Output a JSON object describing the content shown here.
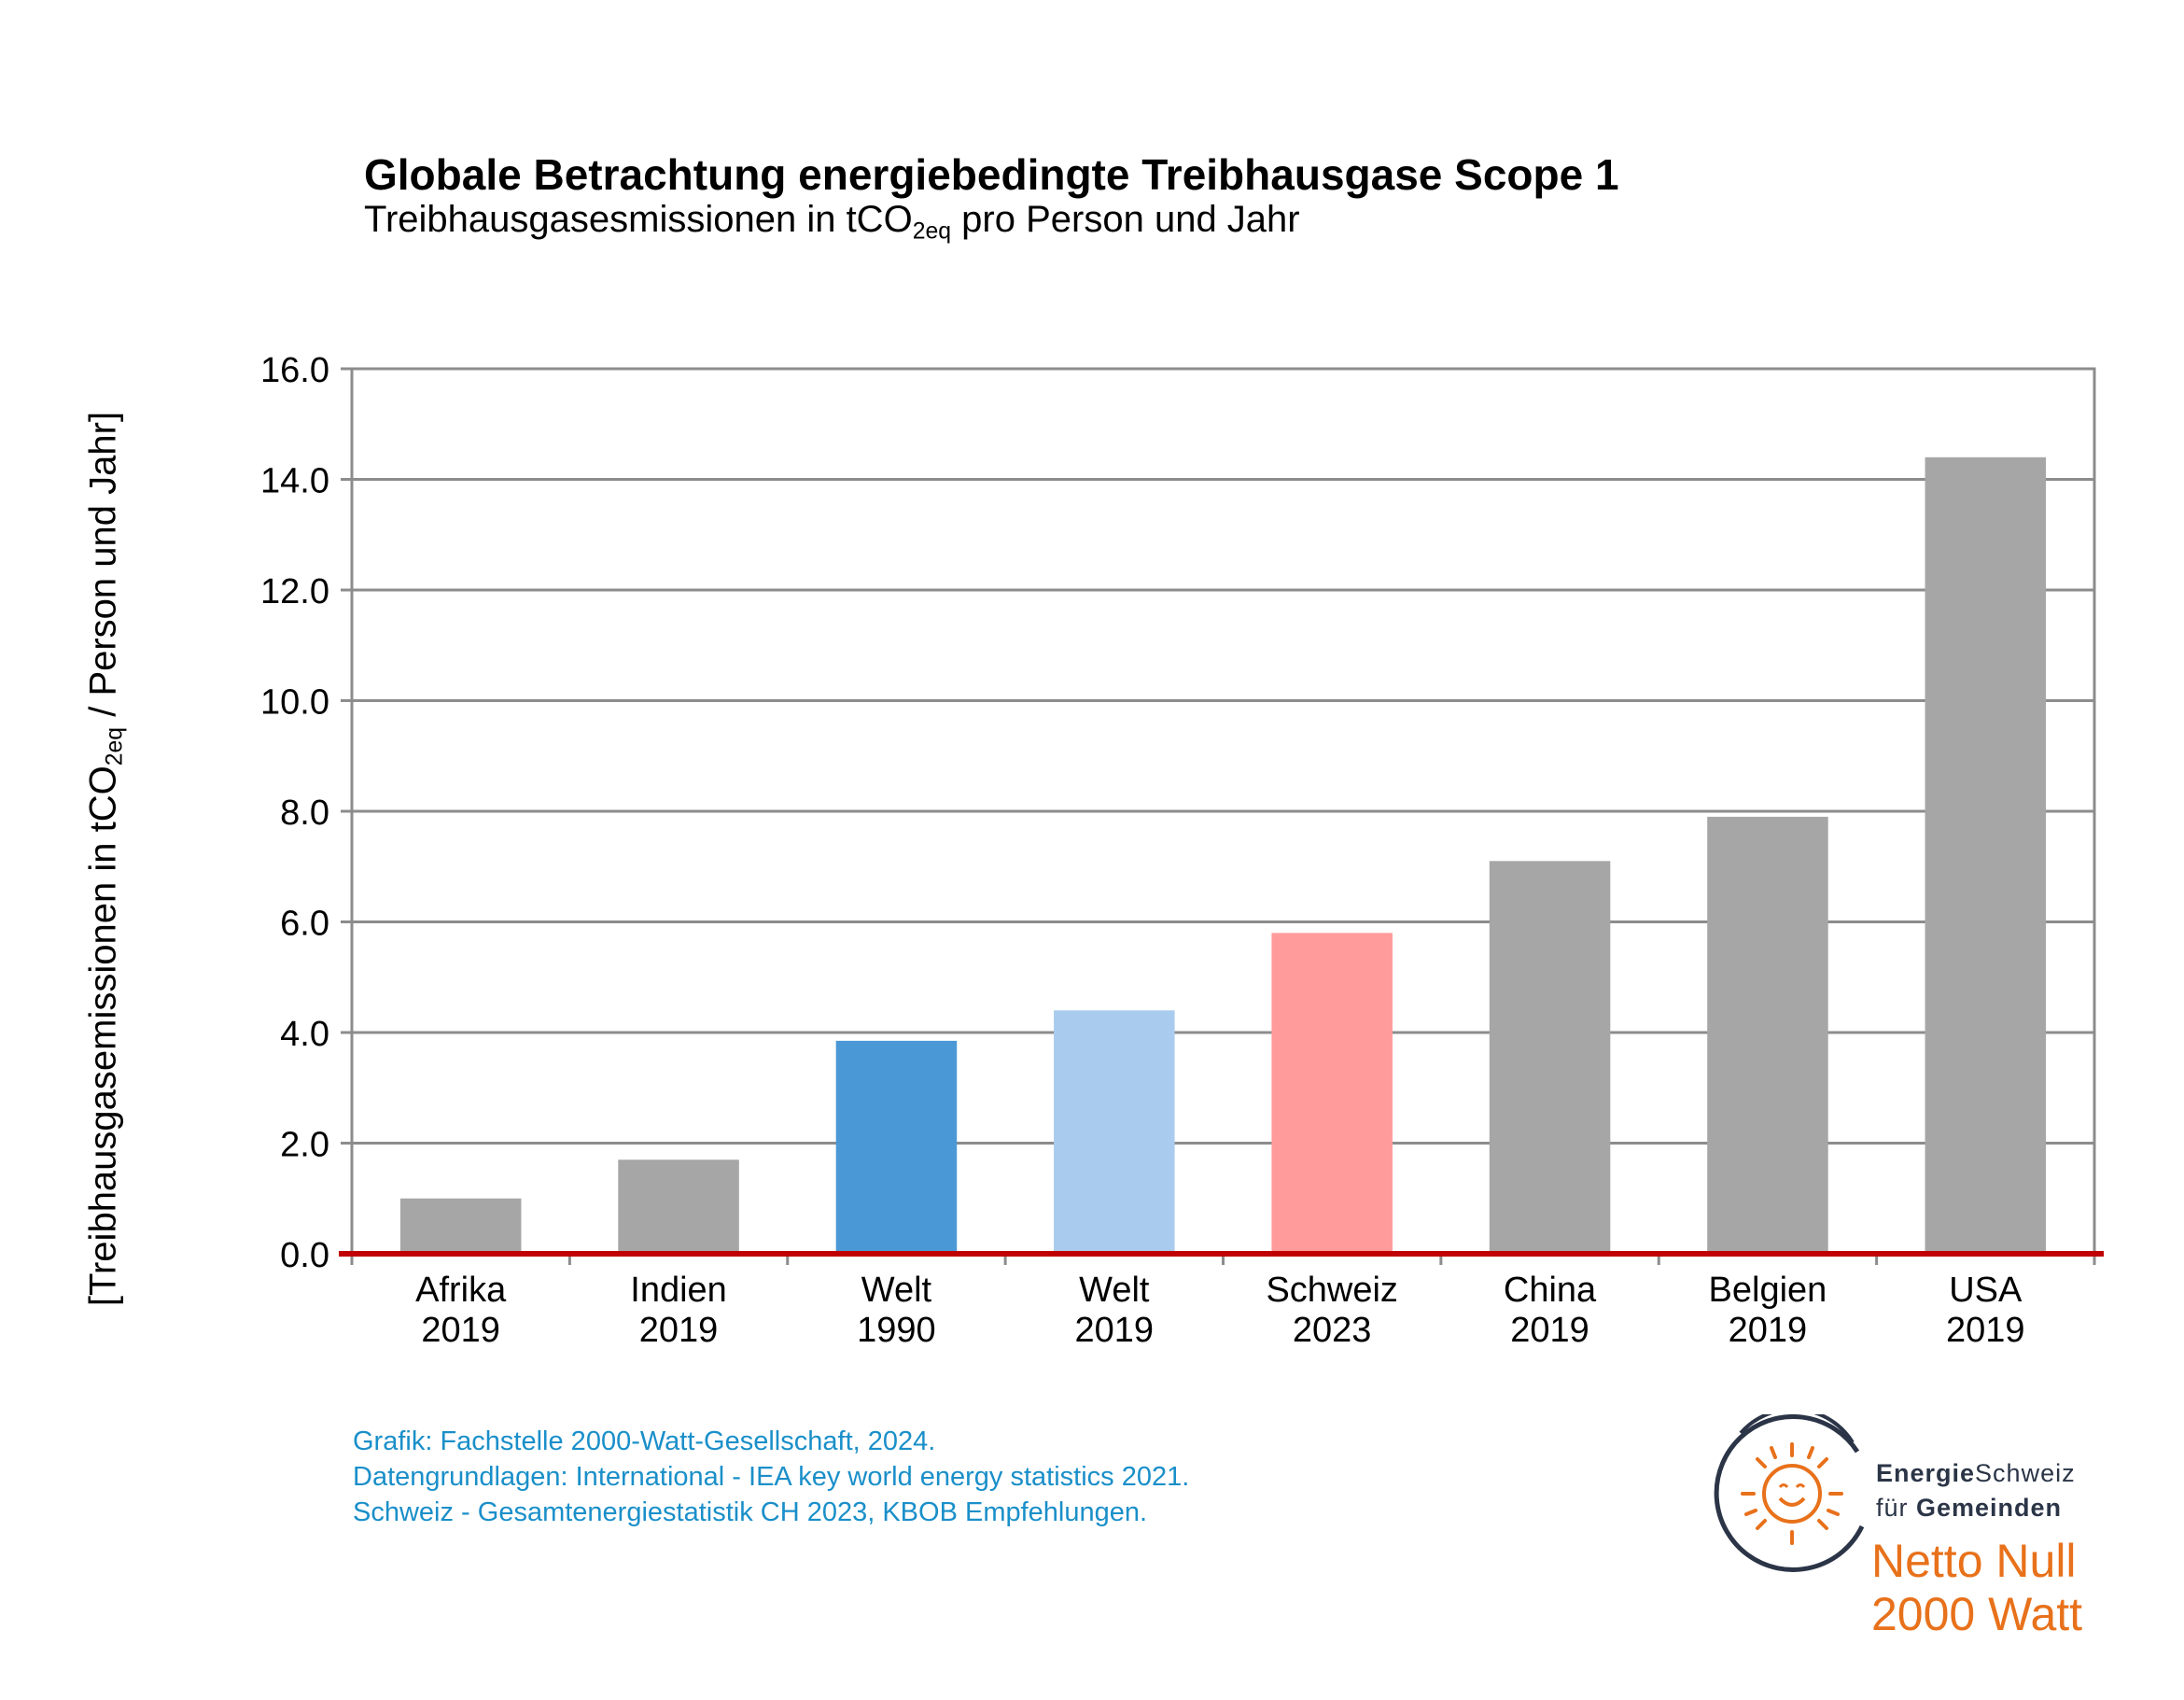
{
  "chart_data": {
    "type": "bar",
    "title": "Globale Betrachtung energiebedingte Treibhausgase Scope 1",
    "subtitle": {
      "pre": "Treibhausgasesmissionen in tCO",
      "sub": "2eq",
      "post": " pro Person und Jahr"
    },
    "ylabel": {
      "pre": "[Treibhausgasemissionen in tCO",
      "sub": "2eq",
      "post": " / Person und Jahr]"
    },
    "categories": [
      [
        "Afrika",
        "2019"
      ],
      [
        "Indien",
        "2019"
      ],
      [
        "Welt",
        "1990"
      ],
      [
        "Welt",
        "2019"
      ],
      [
        "Schweiz",
        "2023"
      ],
      [
        "China",
        "2019"
      ],
      [
        "Belgien",
        "2019"
      ],
      [
        "USA",
        "2019"
      ]
    ],
    "values": [
      1.0,
      1.7,
      3.85,
      4.4,
      5.8,
      7.1,
      7.9,
      14.4
    ],
    "colors": [
      "#a6a6a6",
      "#a6a6a6",
      "#4a98d6",
      "#a9cbee",
      "#ff9b9b",
      "#a6a6a6",
      "#a6a6a6",
      "#a6a6a6"
    ],
    "ylim": [
      0,
      16
    ],
    "yticks": [
      "0.0",
      "2.0",
      "4.0",
      "6.0",
      "8.0",
      "10.0",
      "12.0",
      "14.0",
      "16.0"
    ],
    "grid": true,
    "baseline_color": "#c00000",
    "gridline_color": "#8c8c8c"
  },
  "source": {
    "line1": "Grafik: Fachstelle 2000-Watt-Gesellschaft, 2024.",
    "line2": "Datengrundlagen:  International - IEA key world energy statistics 2021.",
    "line3": "Schweiz - Gesamtenergiestatistik  CH 2023, KBOB Empfehlungen."
  },
  "logo": {
    "line1_bold": "Energie",
    "line1_rest": "Schweiz",
    "line2_pre": "für ",
    "line2_bold": "Gemeinden",
    "line3": "Netto Null",
    "line4": "2000 Watt",
    "icon": "sun-smiley-icon",
    "accent_color": "#e8711b",
    "navy_color": "#2b3547"
  }
}
